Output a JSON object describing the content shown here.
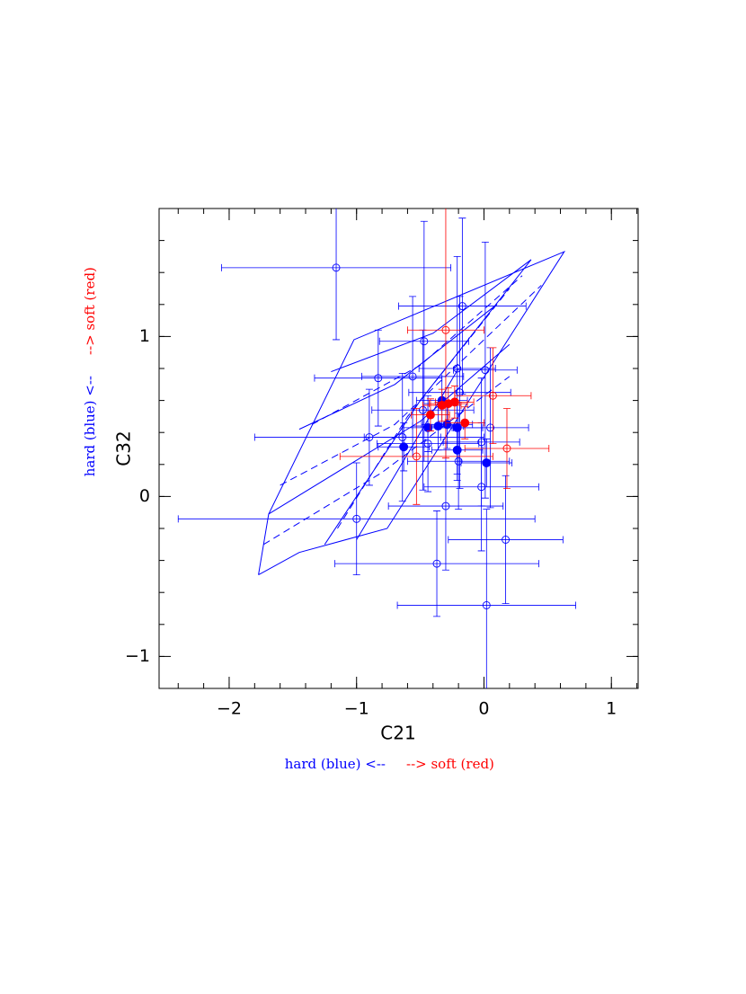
{
  "chart_data": {
    "type": "scatter",
    "x_label": "C21",
    "y_label": "C32",
    "annotations": [
      {
        "text": "hard (blue) <--",
        "color": "#0000ff"
      },
      {
        "text": "--> soft (red)",
        "color": "#ff0000"
      }
    ],
    "xlim": [
      -2.55,
      1.21
    ],
    "ylim": [
      -1.2,
      1.8
    ],
    "xticks": [
      -2,
      -1,
      0,
      1
    ],
    "yticks": [
      -1,
      0,
      1
    ],
    "minor_tick_step": 0.2,
    "series": [
      {
        "marker": "open",
        "color": "#0000ff",
        "x": [
          -1.16,
          -0.47,
          -0.17,
          -0.83,
          -0.56,
          -0.21,
          0.01,
          -0.19,
          -0.48,
          -0.9,
          -0.64,
          -0.44,
          0.05,
          -0.02,
          -0.02,
          -0.2,
          -1.0,
          -0.3,
          -0.37,
          0.17,
          0.02
        ],
        "y": [
          1.43,
          0.97,
          1.19,
          0.74,
          0.75,
          0.8,
          0.79,
          0.65,
          0.54,
          0.37,
          0.37,
          0.33,
          0.43,
          0.34,
          0.06,
          0.22,
          -0.14,
          -0.06,
          -0.42,
          -0.27,
          -0.68
        ],
        "xerr": [
          0.9,
          0.35,
          0.5,
          0.5,
          0.4,
          0.3,
          0.25,
          0.4,
          0.4,
          0.9,
          0.3,
          0.4,
          0.3,
          0.3,
          0.45,
          0.4,
          1.4,
          0.45,
          0.8,
          0.45,
          0.7
        ],
        "yerr": [
          0.45,
          0.75,
          0.55,
          0.3,
          0.5,
          0.7,
          0.8,
          0.6,
          0.5,
          0.3,
          0.4,
          0.3,
          0.5,
          0.4,
          0.4,
          0.3,
          0.35,
          0.4,
          0.33,
          0.4,
          0.6
        ]
      },
      {
        "marker": "open",
        "color": "#ff0000",
        "x": [
          -0.3,
          0.07,
          0.18,
          -0.53
        ],
        "y": [
          1.04,
          0.63,
          0.3,
          0.25
        ],
        "xerr": [
          0.3,
          0.3,
          0.33,
          0.6
        ],
        "yerr": [
          0.8,
          0.3,
          0.25,
          0.3
        ]
      },
      {
        "marker": "filled",
        "color": "#0000ff",
        "x": [
          -0.63,
          -0.44,
          -0.36,
          -0.29,
          -0.33,
          -0.21,
          -0.21,
          0.02
        ],
        "y": [
          0.31,
          0.43,
          0.44,
          0.45,
          0.6,
          0.43,
          0.29,
          0.21
        ],
        "xerr": [
          0.2,
          0.2,
          0.2,
          0.2,
          0.2,
          0.2,
          0.2,
          0.2
        ],
        "yerr": [
          0.15,
          0.15,
          0.15,
          0.15,
          0.15,
          0.15,
          0.15,
          0.15
        ]
      },
      {
        "marker": "filled",
        "color": "#ff0000",
        "x": [
          -0.42,
          -0.33,
          -0.28,
          -0.23,
          -0.15
        ],
        "y": [
          0.51,
          0.57,
          0.58,
          0.59,
          0.46
        ],
        "xerr": [
          0.15,
          0.15,
          0.15,
          0.15,
          0.15
        ],
        "yerr": [
          0.1,
          0.1,
          0.1,
          0.1,
          0.1
        ]
      }
    ],
    "model_lines": [
      {
        "style": "solid",
        "color": "#0000ff",
        "x": [
          -1.77,
          -1.45,
          -0.76,
          0.63,
          -1.02,
          -1.69,
          -1.77
        ],
        "y": [
          -0.49,
          -0.35,
          -0.2,
          1.53,
          0.98,
          -0.11,
          -0.49
        ]
      },
      {
        "style": "solid",
        "color": "#0000ff",
        "x": [
          -1.69,
          -0.5,
          0.2
        ],
        "y": [
          -0.11,
          0.47,
          0.95
        ]
      },
      {
        "style": "solid",
        "color": "#0000ff",
        "x": [
          -1.45,
          -0.7,
          0.1
        ],
        "y": [
          0.42,
          0.7,
          1.2
        ]
      },
      {
        "style": "solid",
        "color": "#0000ff",
        "x": [
          -1.2,
          -0.4,
          0.37
        ],
        "y": [
          0.78,
          1.02,
          1.48
        ]
      },
      {
        "style": "solid",
        "color": "#0000ff",
        "x": [
          -1.25,
          -0.5,
          0.37
        ],
        "y": [
          -0.3,
          0.6,
          1.48
        ]
      },
      {
        "style": "solid",
        "color": "#0000ff",
        "x": [
          -1.0,
          -0.2
        ],
        "y": [
          -0.27,
          0.8
        ]
      },
      {
        "style": "dashed",
        "color": "#0000ff",
        "x": [
          -1.73,
          -0.8,
          0.2
        ],
        "y": [
          -0.3,
          0.15,
          0.75
        ]
      },
      {
        "style": "dashed",
        "color": "#0000ff",
        "x": [
          -1.6,
          -0.7,
          0.45
        ],
        "y": [
          0.07,
          0.45,
          1.32
        ]
      },
      {
        "style": "dashed",
        "color": "#0000ff",
        "x": [
          -1.35,
          -0.5,
          0.3
        ],
        "y": [
          0.45,
          0.82,
          1.38
        ]
      },
      {
        "style": "dashed",
        "color": "#0000ff",
        "x": [
          -1.15,
          -0.6,
          0.2
        ],
        "y": [
          -0.2,
          0.5,
          1.3
        ]
      }
    ]
  }
}
